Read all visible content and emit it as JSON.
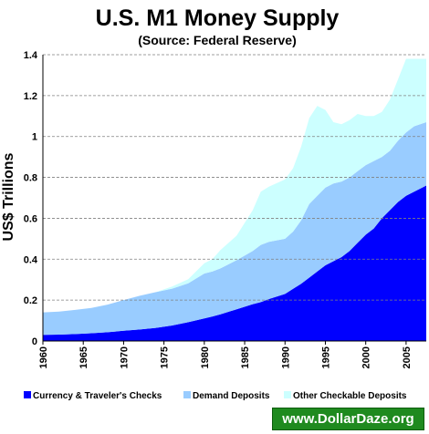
{
  "chart_data": {
    "type": "area",
    "stacked": true,
    "title": "U.S. M1 Money Supply",
    "subtitle": "(Source: Federal Reserve)",
    "xlabel": "",
    "ylabel": "US$ Trillions",
    "xlim": [
      1960,
      2007.5
    ],
    "ylim": [
      0,
      1.4
    ],
    "x_ticks": [
      "1960",
      "1965",
      "1970",
      "1975",
      "1980",
      "1985",
      "1990",
      "1995",
      "2000",
      "2005"
    ],
    "y_ticks": [
      "0",
      "0.2",
      "0.4",
      "0.6",
      "0.8",
      "1",
      "1.2",
      "1.4"
    ],
    "grid": "horizontal-dashed",
    "legend_position": "bottom",
    "x": [
      1960,
      1962,
      1964,
      1966,
      1968,
      1970,
      1972,
      1974,
      1976,
      1978,
      1980,
      1981,
      1982,
      1984,
      1986,
      1987,
      1988,
      1990,
      1991,
      1992,
      1993,
      1994,
      1995,
      1996,
      1997,
      1998,
      1999,
      2000,
      2001,
      2002,
      2003,
      2004,
      2005,
      2006,
      2007.5
    ],
    "series": [
      {
        "name": "Currency & Traveler's Checks",
        "color": "#0000ff",
        "values": [
          0.03,
          0.031,
          0.034,
          0.038,
          0.043,
          0.05,
          0.056,
          0.064,
          0.076,
          0.092,
          0.11,
          0.12,
          0.13,
          0.155,
          0.18,
          0.19,
          0.205,
          0.23,
          0.255,
          0.28,
          0.31,
          0.34,
          0.37,
          0.39,
          0.41,
          0.44,
          0.48,
          0.52,
          0.55,
          0.6,
          0.64,
          0.68,
          0.71,
          0.73,
          0.76
        ]
      },
      {
        "name": "Demand Deposits",
        "color": "#99ccff",
        "values": [
          0.11,
          0.113,
          0.118,
          0.124,
          0.135,
          0.15,
          0.165,
          0.175,
          0.18,
          0.19,
          0.22,
          0.22,
          0.225,
          0.24,
          0.26,
          0.28,
          0.28,
          0.27,
          0.28,
          0.31,
          0.36,
          0.37,
          0.38,
          0.38,
          0.37,
          0.36,
          0.35,
          0.34,
          0.33,
          0.3,
          0.29,
          0.3,
          0.31,
          0.32,
          0.31
        ]
      },
      {
        "name": "Other Checkable Deposits",
        "color": "#ccffff",
        "values": [
          0,
          0,
          0,
          0,
          0,
          0,
          0,
          0,
          0.01,
          0.02,
          0.05,
          0.06,
          0.09,
          0.12,
          0.2,
          0.26,
          0.27,
          0.29,
          0.31,
          0.36,
          0.42,
          0.44,
          0.38,
          0.3,
          0.28,
          0.28,
          0.28,
          0.24,
          0.22,
          0.22,
          0.25,
          0.3,
          0.36,
          0.33,
          0.31
        ]
      }
    ]
  },
  "watermark": "www.DollarDaze.org"
}
